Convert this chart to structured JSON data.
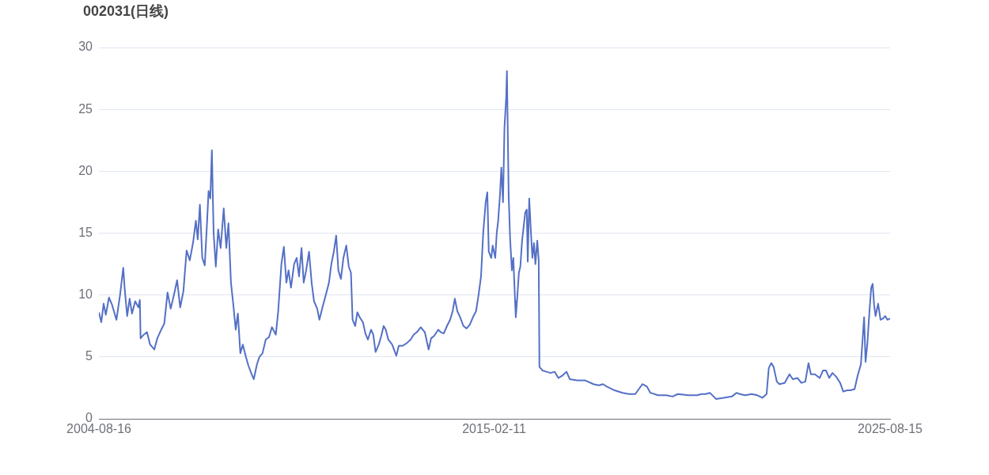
{
  "chart_data": {
    "type": "line",
    "title": "002031(日线)",
    "x": [
      "2004-08-16",
      "2004-09-08",
      "2004-10-01",
      "2004-10-22",
      "2004-11-22",
      "2004-12-22",
      "2005-02-02",
      "2005-03-09",
      "2005-04-09",
      "2005-04-23",
      "2005-05-17",
      "2005-06-10",
      "2005-07-03",
      "2005-08-03",
      "2005-09-03",
      "2005-09-17",
      "2005-09-24",
      "2005-10-25",
      "2005-11-25",
      "2005-12-25",
      "2006-02-04",
      "2006-03-05",
      "2006-04-12",
      "2006-05-12",
      "2006-06-12",
      "2006-07-13",
      "2006-08-13",
      "2006-09-13",
      "2006-10-13",
      "2006-11-13",
      "2006-12-14",
      "2007-01-14",
      "2007-02-14",
      "2007-03-14",
      "2007-04-01",
      "2007-04-22",
      "2007-05-15",
      "2007-06-08",
      "2007-07-01",
      "2007-07-15",
      "2007-08-01",
      "2007-08-16",
      "2007-09-02",
      "2007-09-23",
      "2007-10-16",
      "2007-11-09",
      "2007-12-09",
      "2008-01-03",
      "2008-01-24",
      "2008-02-17",
      "2008-03-10",
      "2008-04-03",
      "2008-04-24",
      "2008-05-18",
      "2008-06-11",
      "2008-07-11",
      "2008-08-04",
      "2008-09-04",
      "2008-09-25",
      "2008-10-26",
      "2008-11-19",
      "2008-12-19",
      "2009-01-19",
      "2009-02-20",
      "2009-03-20",
      "2009-04-27",
      "2009-05-20",
      "2009-06-20",
      "2009-07-14",
      "2009-08-07",
      "2009-08-28",
      "2009-09-21",
      "2009-10-21",
      "2009-11-15",
      "2009-12-08",
      "2010-01-01",
      "2010-01-22",
      "2010-02-15",
      "2010-03-15",
      "2010-04-09",
      "2010-05-02",
      "2010-06-02",
      "2010-06-23",
      "2010-07-23",
      "2010-08-24",
      "2010-09-24",
      "2010-10-17",
      "2010-11-10",
      "2010-12-03",
      "2010-12-24",
      "2011-01-18",
      "2011-02-11",
      "2011-03-11",
      "2011-04-04",
      "2011-04-25",
      "2011-05-11",
      "2011-06-05",
      "2011-06-26",
      "2011-07-19",
      "2011-08-19",
      "2011-09-12",
      "2011-10-06",
      "2011-11-06",
      "2011-11-27",
      "2011-12-20",
      "2012-01-20",
      "2012-02-13",
      "2012-03-07",
      "2012-03-28",
      "2012-04-21",
      "2012-05-28",
      "2012-07-08",
      "2012-08-01",
      "2012-09-08",
      "2012-10-15",
      "2012-11-23",
      "2012-12-23",
      "2013-01-23",
      "2013-03-02",
      "2013-04-10",
      "2013-05-17",
      "2013-06-10",
      "2013-07-10",
      "2013-08-18",
      "2013-09-11",
      "2013-10-11",
      "2013-11-11",
      "2013-12-11",
      "2014-01-05",
      "2014-01-26",
      "2014-02-19",
      "2014-03-19",
      "2014-04-19",
      "2014-05-20",
      "2014-06-20",
      "2014-07-20",
      "2014-08-20",
      "2014-09-13",
      "2014-10-07",
      "2014-10-28",
      "2014-11-21",
      "2014-12-07",
      "2014-12-21",
      "2015-01-14",
      "2015-01-28",
      "2015-02-22",
      "2015-03-08",
      "2015-03-22",
      "2015-04-08",
      "2015-04-22",
      "2015-05-08",
      "2015-05-22",
      "2015-06-08",
      "2015-06-15",
      "2015-07-02",
      "2015-07-16",
      "2015-08-02",
      "2015-08-16",
      "2015-09-02",
      "2015-09-09",
      "2015-09-23",
      "2015-10-09",
      "2015-10-23",
      "2015-11-09",
      "2015-11-24",
      "2015-12-10",
      "2015-12-24",
      "2016-01-03",
      "2016-01-17",
      "2016-02-03",
      "2016-02-17",
      "2016-03-03",
      "2016-03-17",
      "2016-04-04",
      "2016-04-18",
      "2016-04-25",
      "2016-05-25",
      "2016-07-04",
      "2016-08-11",
      "2016-09-19",
      "2016-10-26",
      "2016-12-05",
      "2017-01-13",
      "2017-02-13",
      "2017-04-27",
      "2017-07-14",
      "2017-10-01",
      "2017-11-22",
      "2018-01-01",
      "2018-02-08",
      "2018-04-23",
      "2018-07-10",
      "2018-09-10",
      "2018-11-10",
      "2019-01-18",
      "2019-03-04",
      "2019-04-05",
      "2019-06-19",
      "2019-09-06",
      "2019-11-06",
      "2019-12-27",
      "2020-04-07",
      "2020-07-01",
      "2020-08-15",
      "2020-09-22",
      "2020-11-02",
      "2020-12-09",
      "2021-01-02",
      "2021-03-17",
      "2021-06-03",
      "2021-07-18",
      "2021-08-18",
      "2021-10-11",
      "2021-12-12",
      "2022-02-05",
      "2022-03-26",
      "2022-05-06",
      "2022-05-27",
      "2022-06-20",
      "2022-07-13",
      "2022-08-13",
      "2022-09-07",
      "2022-10-28",
      "2022-12-14",
      "2023-01-15",
      "2023-03-01",
      "2023-04-08",
      "2023-05-16",
      "2023-06-16",
      "2023-07-09",
      "2023-08-16",
      "2023-10-03",
      "2023-11-03",
      "2023-12-03",
      "2024-01-03",
      "2024-02-03",
      "2024-03-11",
      "2024-04-18",
      "2024-05-18",
      "2024-06-25",
      "2024-07-26",
      "2024-09-05",
      "2024-10-05",
      "2024-11-05",
      "2024-12-06",
      "2024-12-20",
      "2025-01-06",
      "2025-01-27",
      "2025-02-13",
      "2025-02-27",
      "2025-03-13",
      "2025-03-27",
      "2025-04-21",
      "2025-05-14",
      "2025-06-07",
      "2025-06-28",
      "2025-07-21",
      "2025-08-15"
    ],
    "series": [
      {
        "color": "#5470c6",
        "values": [
          8.6,
          7.8,
          9.3,
          8.4,
          9.8,
          9.2,
          8.0,
          10.0,
          12.2,
          10.5,
          8.3,
          9.7,
          8.5,
          9.5,
          9.0,
          9.6,
          6.5,
          6.8,
          7.0,
          6.0,
          5.6,
          6.5,
          7.2,
          7.7,
          10.2,
          8.9,
          10.0,
          11.2,
          9.0,
          10.3,
          13.6,
          12.8,
          14.2,
          16.0,
          14.5,
          17.3,
          13.0,
          12.4,
          16.0,
          18.4,
          17.8,
          21.7,
          15.0,
          12.3,
          15.3,
          13.8,
          17.0,
          13.8,
          15.8,
          11.0,
          9.3,
          7.2,
          8.5,
          5.3,
          6.0,
          5.0,
          4.3,
          3.6,
          3.2,
          4.4,
          5.0,
          5.3,
          6.4,
          6.6,
          7.4,
          6.8,
          8.7,
          12.5,
          13.9,
          11.0,
          12.0,
          10.6,
          12.5,
          13.0,
          11.5,
          13.8,
          11.0,
          12.0,
          13.5,
          11.0,
          9.5,
          8.9,
          8.0,
          9.0,
          10.0,
          11.0,
          12.5,
          13.5,
          14.8,
          12.0,
          11.3,
          13.0,
          14.0,
          12.3,
          11.8,
          8.0,
          7.5,
          8.6,
          8.2,
          7.8,
          6.9,
          6.4,
          7.2,
          6.8,
          5.4,
          6.0,
          6.7,
          7.5,
          7.2,
          6.4,
          6.0,
          5.1,
          5.9,
          5.9,
          6.1,
          6.4,
          6.8,
          7.0,
          7.4,
          7.0,
          5.6,
          6.5,
          6.7,
          7.2,
          7.0,
          6.9,
          7.5,
          8.0,
          8.7,
          9.7,
          8.7,
          8.2,
          7.5,
          7.3,
          7.6,
          8.2,
          8.7,
          10.0,
          11.5,
          15.0,
          17.5,
          18.3,
          13.5,
          13.0,
          14.0,
          13.0,
          15.0,
          16.0,
          18.0,
          20.3,
          17.5,
          23.5,
          26.0,
          28.1,
          18.0,
          14.5,
          12.0,
          13.0,
          9.5,
          8.2,
          9.8,
          11.8,
          12.3,
          14.4,
          15.5,
          16.7,
          16.9,
          12.7,
          17.8,
          15.0,
          13.0,
          14.2,
          12.5,
          14.4,
          12.8,
          4.2,
          3.9,
          3.8,
          3.7,
          3.8,
          3.3,
          3.5,
          3.8,
          3.2,
          3.1,
          3.1,
          2.8,
          2.7,
          2.8,
          2.6,
          2.3,
          2.1,
          2.0,
          2.0,
          2.8,
          2.6,
          2.1,
          1.9,
          1.9,
          1.8,
          2.0,
          1.9,
          1.9,
          2.0,
          2.0,
          2.1,
          1.8,
          1.6,
          1.7,
          1.8,
          2.1,
          2.0,
          1.9,
          2.0,
          1.9,
          1.7,
          2.0,
          4.1,
          4.5,
          4.2,
          3.0,
          2.8,
          2.9,
          3.6,
          3.2,
          3.3,
          2.9,
          3.0,
          4.5,
          3.6,
          3.6,
          3.3,
          3.9,
          3.9,
          3.3,
          3.7,
          3.4,
          2.9,
          2.2,
          2.3,
          2.3,
          2.4,
          3.5,
          4.4,
          8.2,
          4.6,
          6.0,
          8.7,
          10.6,
          10.9,
          9.2,
          8.3,
          9.3,
          8.0,
          8.1,
          8.3,
          8.0,
          8.1
        ]
      }
    ],
    "xlim": [
      "2004-08-16",
      "2025-08-15"
    ],
    "xticks": [
      "2004-08-16",
      "2015-02-11",
      "2025-08-15"
    ],
    "ylim": [
      0,
      30
    ],
    "yticks": [
      0,
      5,
      10,
      15,
      20,
      25,
      30
    ],
    "grid": "y",
    "marker": "none",
    "line_style": "solid"
  }
}
